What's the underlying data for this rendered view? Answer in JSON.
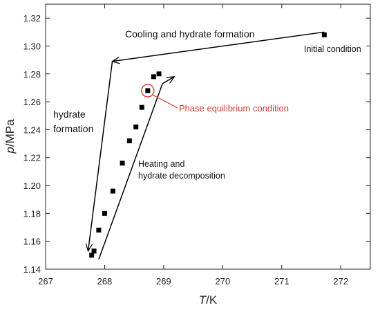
{
  "chart_data": {
    "type": "scatter",
    "xlabel": "T/K",
    "xlabel_var": "T",
    "xlabel_unit": "/K",
    "ylabel": "p/MPa",
    "ylabel_var": "p",
    "ylabel_unit": "/MPa",
    "xlim": [
      267,
      272.5
    ],
    "ylim": [
      1.14,
      1.33
    ],
    "xticks": [
      "267",
      "268",
      "269",
      "270",
      "271",
      "272"
    ],
    "yticks": [
      "1.14",
      "1.16",
      "1.18",
      "1.20",
      "1.22",
      "1.24",
      "1.26",
      "1.28",
      "1.30",
      "1.32"
    ],
    "grid": false,
    "legend": false,
    "series": [
      {
        "points": [
          {
            "x": 271.72,
            "y": 1.308
          },
          {
            "x": 268.92,
            "y": 1.28
          },
          {
            "x": 268.83,
            "y": 1.278
          },
          {
            "x": 268.73,
            "y": 1.268
          },
          {
            "x": 268.63,
            "y": 1.256
          },
          {
            "x": 268.53,
            "y": 1.242
          },
          {
            "x": 268.42,
            "y": 1.232
          },
          {
            "x": 268.3,
            "y": 1.216
          },
          {
            "x": 268.14,
            "y": 1.196
          },
          {
            "x": 268.0,
            "y": 1.18
          },
          {
            "x": 267.9,
            "y": 1.168
          },
          {
            "x": 267.82,
            "y": 1.153
          },
          {
            "x": 267.78,
            "y": 1.15
          }
        ]
      }
    ],
    "paths": [
      {
        "from": {
          "x": 271.72,
          "y": 1.31
        },
        "to": {
          "x": 268.13,
          "y": 1.289
        }
      },
      {
        "from": {
          "x": 268.13,
          "y": 1.289
        },
        "to": {
          "x": 267.72,
          "y": 1.153
        }
      },
      {
        "from": {
          "x": 267.9,
          "y": 1.147
        },
        "to": {
          "x": 268.98,
          "y": 1.273
        }
      },
      {
        "from": {
          "x": 268.98,
          "y": 1.273
        },
        "to": {
          "x": 269.18,
          "y": 1.278
        }
      }
    ],
    "highlighted_point": {
      "x": 268.73,
      "y": 1.268
    },
    "annotations": {
      "cooling": "Cooling and hydrate formation",
      "initial": "Initial condition",
      "hydrate_line1": "hydrate",
      "hydrate_line2": "formation",
      "heating_line1": "Heating and",
      "heating_line2": "hydrate decomposition",
      "phase": "Phase equilibrium condition"
    },
    "colors": {
      "axis": "#222222",
      "marker": "#000000",
      "arrow": "#000000",
      "highlight": "#d83a2d"
    }
  }
}
